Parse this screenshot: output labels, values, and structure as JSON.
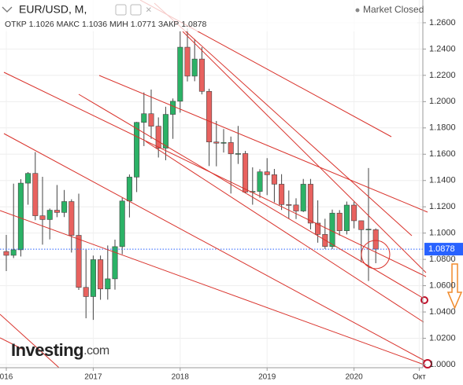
{
  "chart_data": {
    "type": "candlestick",
    "title": "EUR/USD, M,",
    "status": "Market Closed",
    "ohlc_labels": [
      "ОТКР",
      "МАКС",
      "МИН",
      "ЗАКР"
    ],
    "watermark": "Investing",
    "watermark_suffix": ".com",
    "categories": [
      "016",
      null,
      null,
      null,
      null,
      null,
      null,
      null,
      null,
      null,
      null,
      null,
      "2017",
      null,
      null,
      null,
      null,
      null,
      null,
      null,
      null,
      null,
      null,
      null,
      "2018",
      null,
      null,
      null,
      null,
      null,
      null,
      null,
      null,
      null,
      null,
      null,
      "2019",
      null,
      null,
      null,
      null,
      null,
      null,
      null,
      null,
      null,
      null,
      null,
      "2020",
      null,
      null,
      null,
      null,
      null,
      null,
      null,
      null,
      "Окт"
    ],
    "open": [
      1.086,
      1.0831,
      1.0873,
      1.138,
      1.1454,
      1.1132,
      1.1103,
      1.1174,
      1.1157,
      1.124,
      1.0983,
      1.0587,
      1.0517,
      1.0798,
      1.0575,
      1.0652,
      1.0897,
      1.1244,
      1.1426,
      1.1842,
      1.1908,
      1.1813,
      1.1646,
      1.1903,
      1.2003,
      1.2414,
      1.2194,
      1.2324,
      1.2078,
      1.1693,
      1.1684,
      1.1689,
      1.1603,
      1.1605,
      1.1312,
      1.1317,
      1.1466,
      1.1444,
      1.1372,
      1.1217,
      1.1214,
      1.1168,
      1.1372,
      1.1076,
      1.099,
      1.0898,
      1.1152,
      1.1018,
      1.1213,
      1.1094,
      1.1026,
      1.1026,
      null,
      null,
      null,
      null,
      null,
      null
    ],
    "high": [
      1.0986,
      1.1376,
      1.141,
      1.1464,
      1.1616,
      1.1428,
      1.1187,
      1.1366,
      1.1328,
      1.1257,
      1.13,
      1.0874,
      1.0829,
      1.0829,
      1.0906,
      1.095,
      1.1268,
      1.1446,
      1.1846,
      1.207,
      1.2092,
      1.188,
      1.1961,
      1.2024,
      1.2537,
      1.2556,
      1.2476,
      1.2414,
      1.2098,
      1.1853,
      1.1791,
      1.1734,
      1.1815,
      1.1625,
      1.15,
      1.1486,
      1.157,
      1.1488,
      1.1448,
      1.1324,
      1.1265,
      1.1412,
      1.1412,
      1.1249,
      1.1109,
      1.1179,
      1.1175,
      1.124,
      1.1239,
      1.1096,
      1.1495,
      1.1036,
      null,
      null,
      null,
      null,
      null,
      null
    ],
    "low": [
      1.0711,
      1.081,
      1.0822,
      1.1216,
      1.1098,
      1.0912,
      1.0952,
      1.1121,
      1.1122,
      1.0852,
      1.0568,
      1.0352,
      1.034,
      1.0493,
      1.0494,
      1.057,
      1.0839,
      1.1119,
      1.1312,
      1.1662,
      1.1717,
      1.1575,
      1.1554,
      1.1717,
      1.1916,
      1.2154,
      1.2155,
      1.2055,
      1.151,
      1.1508,
      1.1613,
      1.1301,
      1.1526,
      1.1302,
      1.1216,
      1.1269,
      1.1289,
      1.1234,
      1.1176,
      1.111,
      1.1107,
      1.116,
      1.1028,
      1.0927,
      1.0879,
      1.0879,
      1.0981,
      1.099,
      1.1036,
      1.0778,
      1.0636,
      1.0771,
      null,
      null,
      null,
      null,
      null,
      null
    ],
    "close": [
      1.0831,
      1.0873,
      1.138,
      1.1454,
      1.1132,
      1.1103,
      1.1174,
      1.1157,
      1.124,
      1.0983,
      1.0587,
      1.0517,
      1.0798,
      1.0575,
      1.0652,
      1.0897,
      1.1244,
      1.1426,
      1.1842,
      1.1908,
      1.1813,
      1.1646,
      1.1903,
      1.2003,
      1.2414,
      1.2194,
      1.2324,
      1.2078,
      1.1693,
      1.1684,
      1.1689,
      1.1603,
      1.1605,
      1.1312,
      1.1317,
      1.1466,
      1.1444,
      1.1372,
      1.1217,
      1.1214,
      1.1168,
      1.1372,
      1.1076,
      1.099,
      1.0898,
      1.1152,
      1.1018,
      1.1213,
      1.1094,
      1.1026,
      1.103,
      1.0878,
      null,
      null,
      null,
      null,
      null,
      null
    ],
    "up_color": "#2bb266",
    "down_color": "#e8625f",
    "price_line_color": "#2862ff",
    "ylim": [
      0.9976,
      1.2773
    ],
    "yticks": [
      {
        "value": 1.0,
        "label": "1.0000"
      },
      {
        "value": 1.02,
        "label": "1.0200"
      },
      {
        "value": 1.04,
        "label": "1.0400"
      },
      {
        "value": 1.06,
        "label": "1.0600"
      },
      {
        "value": 1.08,
        "label": "1.0800"
      },
      {
        "value": 1.1,
        "label": "1.1000"
      },
      {
        "value": 1.12,
        "label": "1.1200"
      },
      {
        "value": 1.14,
        "label": "1.1400"
      },
      {
        "value": 1.16,
        "label": "1.1600"
      },
      {
        "value": 1.18,
        "label": "1.1800"
      },
      {
        "value": 1.2,
        "label": "1.2000"
      },
      {
        "value": 1.22,
        "label": "1.2200"
      },
      {
        "value": 1.24,
        "label": "1.2400"
      },
      {
        "value": 1.26,
        "label": "1.2600"
      }
    ],
    "grid": true
  }
}
